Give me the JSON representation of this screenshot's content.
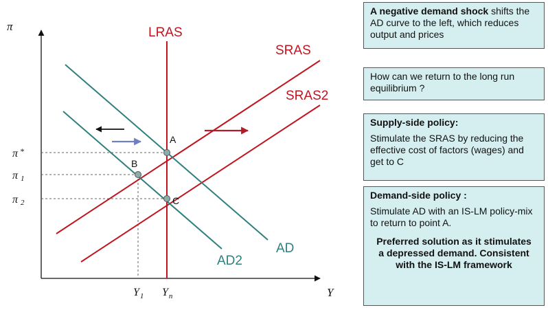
{
  "diagram": {
    "y_axis_symbol": "π",
    "x_axis_symbol": "Y",
    "curves": {
      "lras": "LRAS",
      "sras": "SRAS",
      "sras2": "SRAS2",
      "ad": "AD",
      "ad2": "AD2"
    },
    "points": {
      "a": "A",
      "b": "B",
      "c": "C"
    },
    "y_ticks": {
      "pi_star": {
        "sym": "π",
        "sup": "*"
      },
      "pi_1": {
        "sym": "π",
        "sub": "1"
      },
      "pi_2": {
        "sym": "π",
        "sub": "2"
      }
    },
    "x_ticks": {
      "y_1": {
        "sym": "Y",
        "sub": "1"
      },
      "y_n": {
        "sym": "Y",
        "sub": "n"
      }
    }
  },
  "panels": {
    "shock": {
      "bold": "A negative demand shock",
      "rest": " shifts the AD curve to the left, which reduces output and prices"
    },
    "question": "How can we return to the long run equilibrium ?",
    "supply": {
      "heading": "Supply-side policy:",
      "text": "Stimulate the SRAS by reducing the effective cost of factors (wages) and get to C"
    },
    "demand": {
      "heading": "Demand-side policy :",
      "text": "Stimulate AD with an IS-LM policy-mix to return to point A.",
      "preferred": "Preferred solution as it stimulates a depressed demand. Consistent with the IS-LM framework"
    }
  },
  "colors": {
    "supply_curves": "#c0151f",
    "demand_curves": "#2f7f7d",
    "panel_bg": "#d5eff1",
    "point_fill": "#8aacab",
    "arrow_left": "#111111",
    "arrow_blue": "#6f7fc0",
    "arrow_red": "#b01c2a"
  }
}
